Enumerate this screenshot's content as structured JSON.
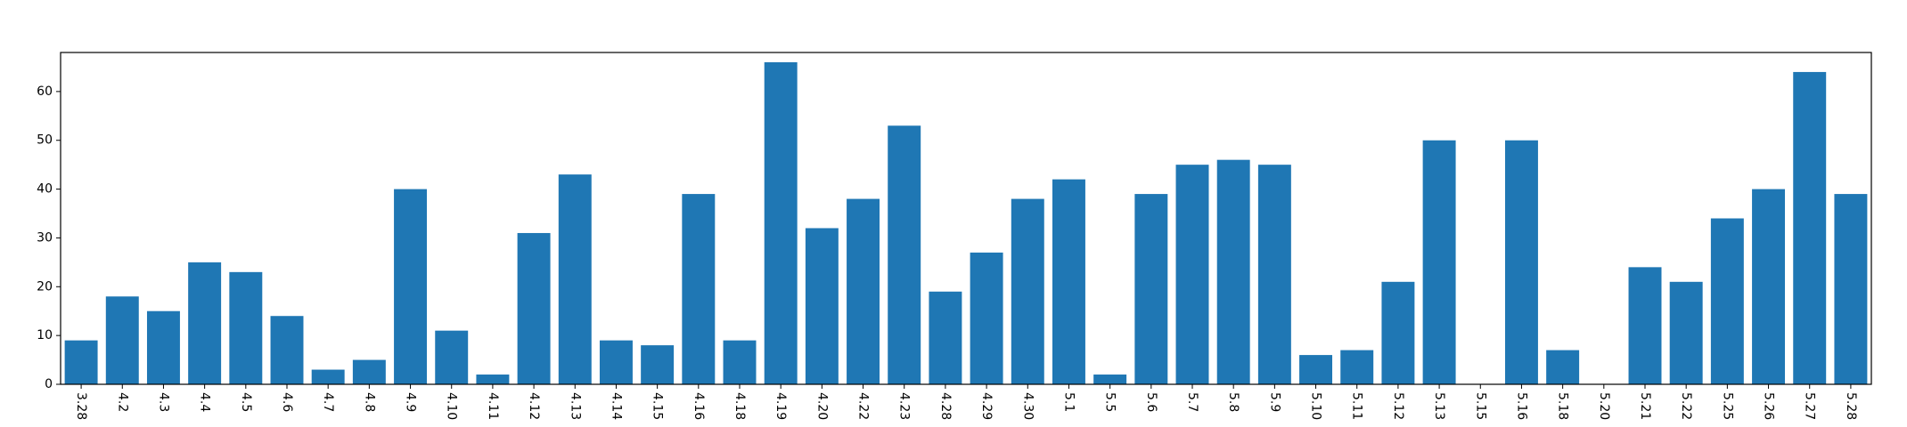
{
  "chart_data": {
    "type": "bar",
    "title": "",
    "xlabel": "",
    "ylabel": "",
    "ylim": [
      0,
      68
    ],
    "yticks": [
      0,
      10,
      20,
      30,
      40,
      50,
      60
    ],
    "grid": false,
    "legend": "none",
    "bar_color": "#1f77b4",
    "categories": [
      "3.28",
      "4.2",
      "4.3",
      "4.4",
      "4.5",
      "4.6",
      "4.7",
      "4.8",
      "4.9",
      "4.10",
      "4.11",
      "4.12",
      "4.13",
      "4.14",
      "4.15",
      "4.16",
      "4.18",
      "4.19",
      "4.20",
      "4.22",
      "4.23",
      "4.28",
      "4.29",
      "4.30",
      "5.1",
      "5.5",
      "5.6",
      "5.7",
      "5.8",
      "5.9",
      "5.10",
      "5.11",
      "5.12",
      "5.13",
      "5.15",
      "5.16",
      "5.18",
      "5.20",
      "5.21",
      "5.22",
      "5.25",
      "5.26",
      "5.27",
      "5.28"
    ],
    "values": [
      9,
      18,
      15,
      25,
      23,
      14,
      3,
      5,
      40,
      11,
      2,
      31,
      43,
      9,
      8,
      39,
      9,
      66,
      32,
      38,
      53,
      19,
      27,
      38,
      42,
      2,
      39,
      45,
      46,
      45,
      6,
      7,
      21,
      50,
      0,
      50,
      7,
      0,
      24,
      21,
      34,
      40,
      64,
      39
    ]
  }
}
